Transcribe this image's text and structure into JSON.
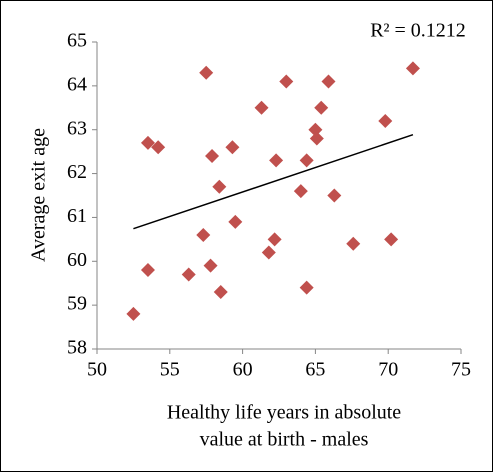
{
  "chart_data": {
    "type": "scatter",
    "annotation": "R² = 0.1212",
    "xlabel": [
      "Healthy life years in absolute",
      "value at birth - males"
    ],
    "ylabel": "Average exit age",
    "trendline": true,
    "series": [
      {
        "color": "#c0504d",
        "x": [
          52.5,
          53.5,
          53.5,
          54.2,
          56.3,
          57.3,
          57.5,
          57.8,
          57.9,
          58.4,
          58.5,
          59.3,
          59.5,
          61.3,
          61.8,
          62.2,
          62.3,
          63.0,
          64.0,
          64.4,
          64.4,
          65.0,
          65.1,
          65.4,
          65.9,
          66.3,
          67.6,
          69.8,
          70.2,
          71.7
        ],
        "values": [
          58.8,
          59.8,
          62.7,
          62.6,
          59.7,
          60.6,
          64.3,
          59.9,
          62.4,
          61.7,
          59.3,
          62.6,
          60.9,
          63.5,
          60.2,
          60.5,
          62.3,
          64.1,
          61.6,
          62.3,
          59.4,
          63.0,
          62.8,
          63.5,
          64.1,
          61.5,
          60.4,
          63.2,
          60.5,
          64.4
        ]
      }
    ],
    "xlim": [
      50,
      75
    ],
    "xticks": [
      50,
      55,
      60,
      65,
      70,
      75
    ],
    "ylim": [
      58,
      65
    ],
    "yticks": [
      58,
      59,
      60,
      61,
      62,
      63,
      64,
      65
    ]
  }
}
